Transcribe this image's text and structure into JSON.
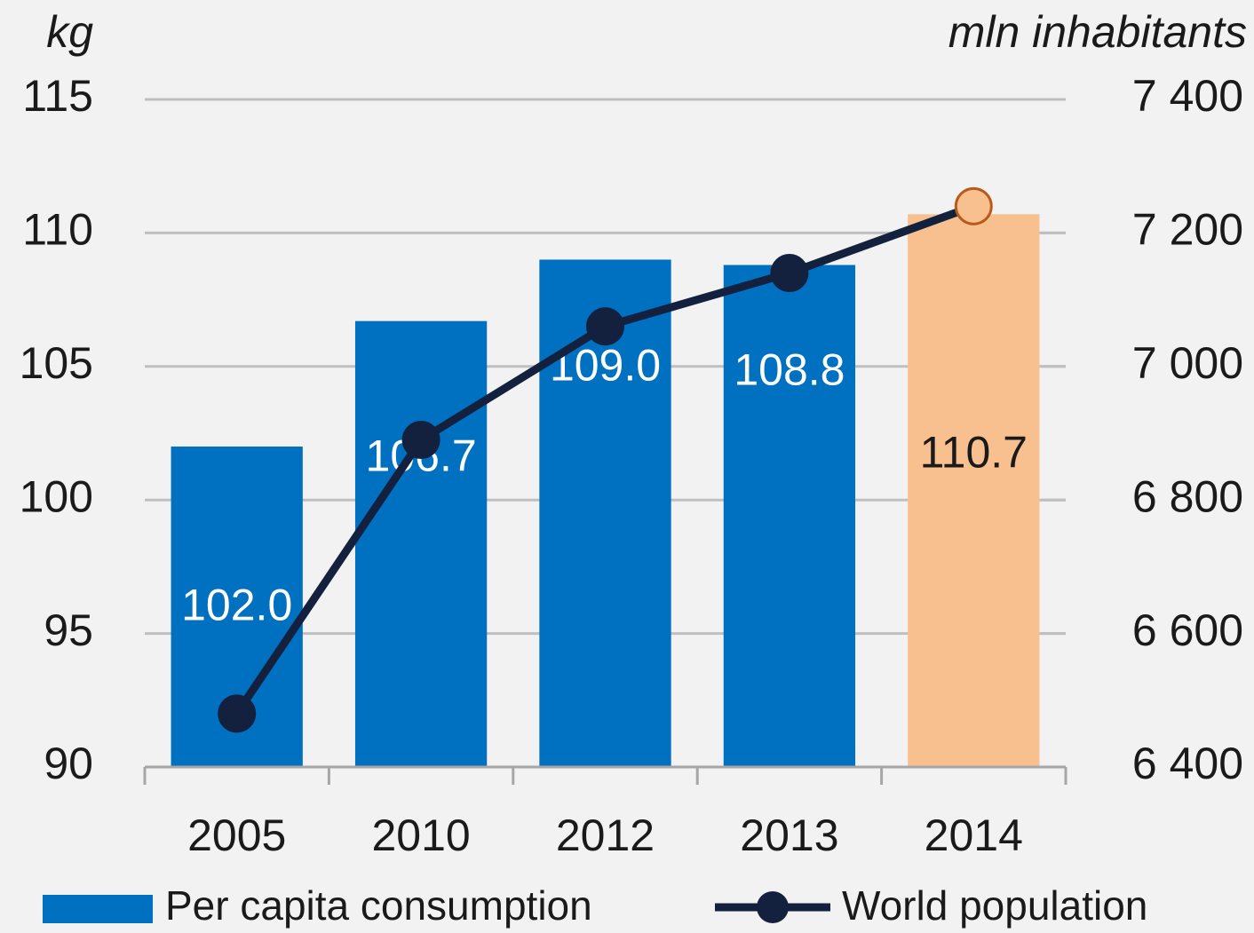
{
  "chart_data": {
    "type": "bar_line",
    "y_label": "kg",
    "y2_label": "mln inhabitants",
    "categories": [
      "2005",
      "2010",
      "2012",
      "2013",
      "2014"
    ],
    "ylim": [
      90,
      115
    ],
    "yticks": [
      90,
      95,
      100,
      105,
      110,
      115
    ],
    "y2lim": [
      6400,
      7400
    ],
    "y2ticks": [
      {
        "value": 6400,
        "label": "6 400"
      },
      {
        "value": 6600,
        "label": "6 600"
      },
      {
        "value": 6800,
        "label": "6 800"
      },
      {
        "value": 7000,
        "label": "7 000"
      },
      {
        "value": 7200,
        "label": "7 200"
      },
      {
        "value": 7400,
        "label": "7 400"
      }
    ],
    "grid": true,
    "legend": "bottom",
    "series": [
      {
        "name": "Per capita consumption",
        "type": "bar",
        "color": "#0070c0",
        "point_colors": [
          "#0070c0",
          "#0070c0",
          "#0070c0",
          "#0070c0",
          "#f9c08f"
        ],
        "value_label_colors": [
          "#ffffff",
          "#ffffff",
          "#ffffff",
          "#ffffff",
          "#1a1a1a"
        ],
        "values": [
          102.0,
          106.7,
          109.0,
          108.8,
          110.7
        ],
        "value_labels": [
          "102.0",
          "106.7",
          "109.0",
          "108.8",
          "110.7"
        ]
      },
      {
        "name": "World population",
        "type": "line",
        "axis": "y2",
        "color": "#13213f",
        "marker_colors": [
          "#13213f",
          "#13213f",
          "#13213f",
          "#13213f",
          "#f9c08f"
        ],
        "values": [
          6480,
          6890,
          7060,
          7140,
          7240
        ]
      }
    ]
  }
}
